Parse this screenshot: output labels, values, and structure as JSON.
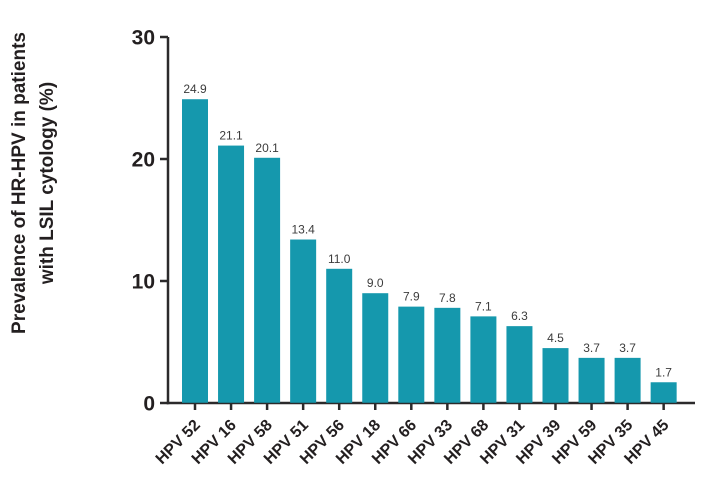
{
  "chart_data": {
    "type": "bar",
    "title": "",
    "ylabel_line1": "Prevalence of HR-HPV in patients",
    "ylabel_line2": "with LSIL cytology (%)",
    "xlabel": "",
    "categories": [
      "HPV 52",
      "HPV 16",
      "HPV 58",
      "HPV 51",
      "HPV 56",
      "HPV 18",
      "HPV 66",
      "HPV 33",
      "HPV 68",
      "HPV 31",
      "HPV 39",
      "HPV 59",
      "HPV 35",
      "HPV 45"
    ],
    "values": [
      24.9,
      21.1,
      20.1,
      13.4,
      11.0,
      9.0,
      7.9,
      7.8,
      7.1,
      6.3,
      4.5,
      3.7,
      3.7,
      1.7
    ],
    "value_labels": [
      "24.9",
      "21.1",
      "20.1",
      "13.4",
      "11.0",
      "9.0",
      "7.9",
      "7.8",
      "7.1",
      "6.3",
      "4.5",
      "3.7",
      "3.7",
      "1.7"
    ],
    "yticks": [
      0,
      10,
      20,
      30
    ],
    "ylim": [
      0,
      30
    ],
    "grid": false,
    "legend": null,
    "colors": {
      "bar": "#1598AD",
      "axis": "#2B2A2B",
      "tick_text": "#231F20",
      "value_text": "#3C3C3C"
    }
  }
}
